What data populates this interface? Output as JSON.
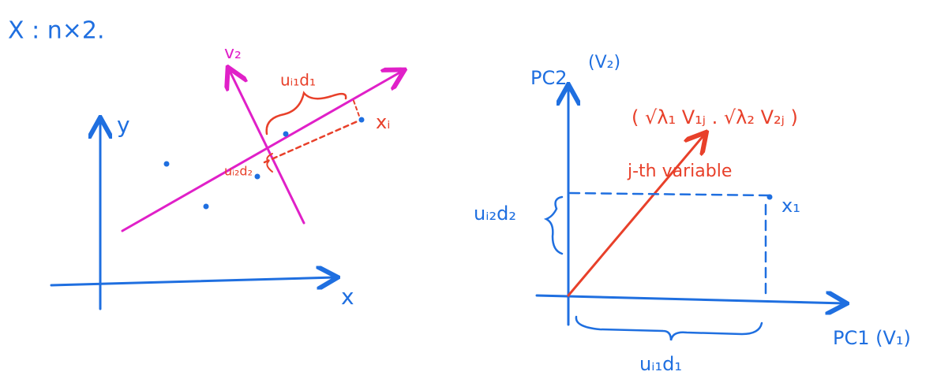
{
  "header": {
    "title": "X : n×2."
  },
  "left_plot": {
    "y_label": "y",
    "x_label": "x",
    "v2_label": "v₂",
    "proj1_label": "uᵢ₁d₁",
    "point_label": "xᵢ",
    "proj2_label": "uᵢ₂d₂"
  },
  "right_plot": {
    "y_label": "PC2",
    "y_sub": "(V₂)",
    "x_label": "PC1 (V₁)",
    "vector_label": "( √λ₁ V₁ⱼ . √λ₂ V₂ⱼ )",
    "variable_label": "j-th variable",
    "point_label": "x₁",
    "coord2_label": "uᵢ₂d₂",
    "coord1_label": "uᵢ₁d₁"
  }
}
